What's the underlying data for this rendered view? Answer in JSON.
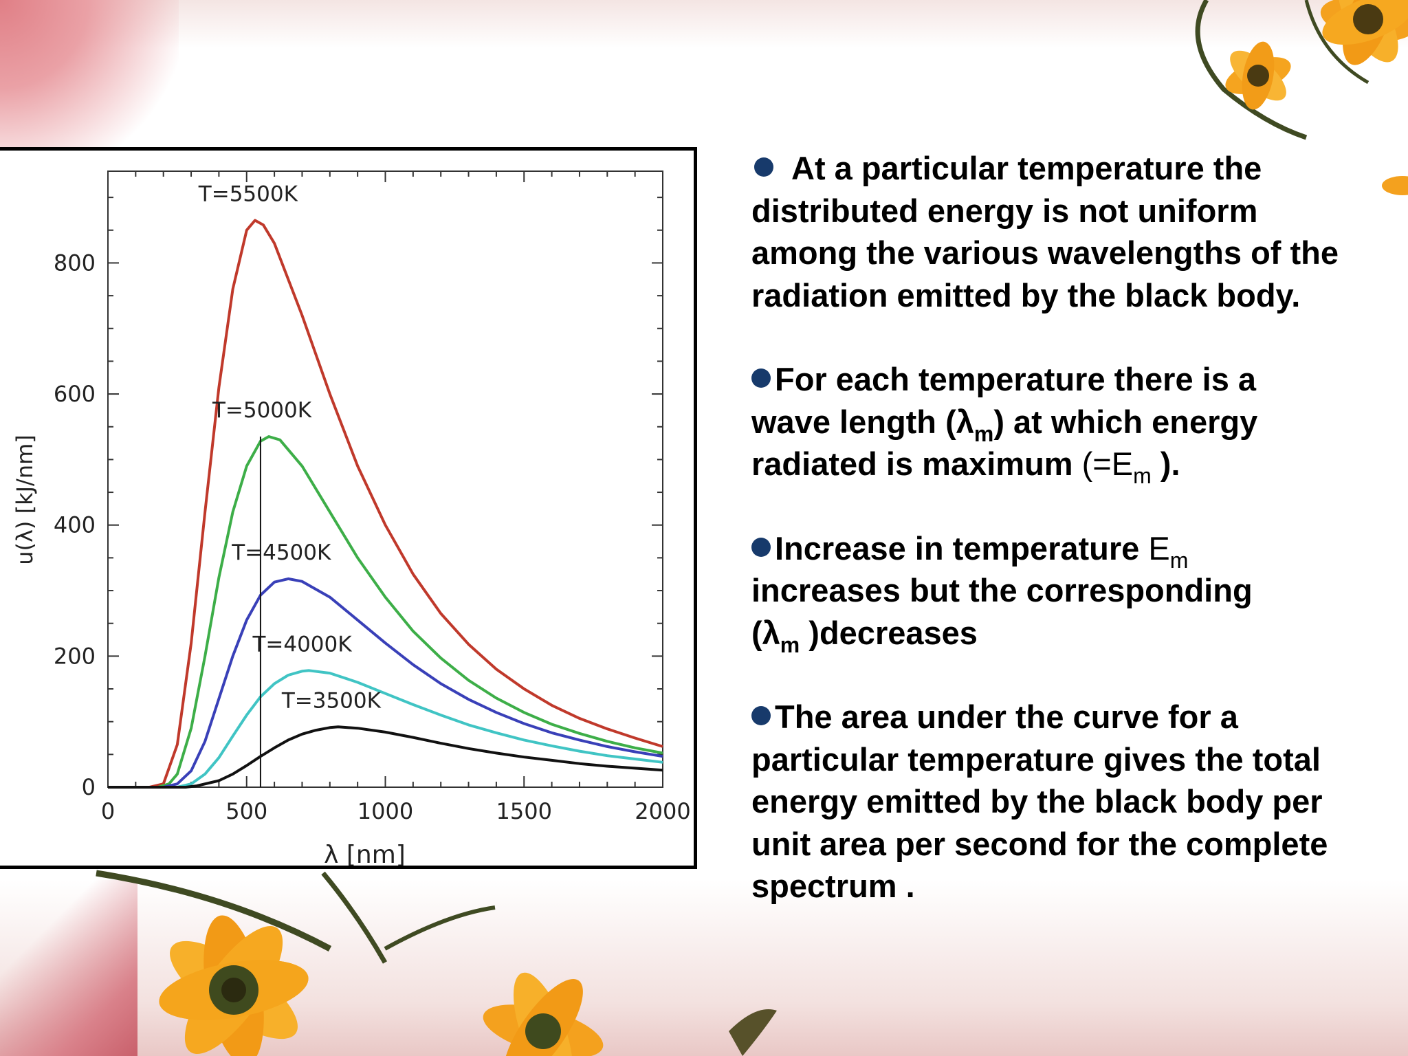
{
  "slide": {
    "paragraphs": [
      {
        "lines": [
          "At a particular temperature  the",
          "distributed energy is not uniform",
          "among the various wavelengths of the",
          "radiation emitted by the black body."
        ]
      },
      {
        "line1": "For each temperature there is a",
        "line2_a": "wave length (λ",
        "line2_sub": "m",
        "line2_b": ")  at which energy",
        "line3_a": "radiated is maximum  ",
        "line3_plain": "(=E",
        "line3_sub": "m",
        "line3_b": " )."
      },
      {
        "line1_a": "Increase in temperature ",
        "line1_plain": "E",
        "line1_sub": "m",
        "line2": "increases but the corresponding",
        "line3_a": "(λ",
        "line3_sub": "m",
        "line3_b": " )decreases"
      },
      {
        "lines": [
          "The area under the curve for a",
          "particular temperature  gives  the total",
          "energy emitted by the black body per",
          "unit area per second  for the complete",
          "spectrum ."
        ]
      }
    ],
    "bullet_color": "#173a6b"
  },
  "chart_data": {
    "type": "line",
    "xlabel": "λ [nm]",
    "ylabel": "u(λ) [kJ/nm]",
    "xlim": [
      0,
      2000
    ],
    "ylim": [
      0,
      940
    ],
    "xticks": [
      0,
      500,
      1000,
      1500,
      2000
    ],
    "yticks": [
      0,
      200,
      400,
      600,
      800
    ],
    "grid": false,
    "marker_line": {
      "x": 550,
      "y_top": 535
    },
    "series": [
      {
        "name": "T=5500K",
        "T": 5500,
        "color": "#c0392b",
        "peak": [
          530,
          865
        ],
        "points": [
          [
            0,
            0
          ],
          [
            150,
            0
          ],
          [
            200,
            5
          ],
          [
            250,
            65
          ],
          [
            300,
            220
          ],
          [
            350,
            420
          ],
          [
            400,
            610
          ],
          [
            450,
            760
          ],
          [
            500,
            850
          ],
          [
            530,
            865
          ],
          [
            560,
            858
          ],
          [
            600,
            830
          ],
          [
            700,
            720
          ],
          [
            800,
            600
          ],
          [
            900,
            490
          ],
          [
            1000,
            400
          ],
          [
            1100,
            325
          ],
          [
            1200,
            265
          ],
          [
            1300,
            218
          ],
          [
            1400,
            180
          ],
          [
            1500,
            150
          ],
          [
            1600,
            125
          ],
          [
            1700,
            105
          ],
          [
            1800,
            89
          ],
          [
            1900,
            75
          ],
          [
            2000,
            62
          ]
        ]
      },
      {
        "name": "T=5000K",
        "T": 5000,
        "color": "#3dae48",
        "peak": [
          580,
          535
        ],
        "points": [
          [
            0,
            0
          ],
          [
            180,
            0
          ],
          [
            220,
            5
          ],
          [
            250,
            20
          ],
          [
            300,
            90
          ],
          [
            350,
            200
          ],
          [
            400,
            320
          ],
          [
            450,
            420
          ],
          [
            500,
            490
          ],
          [
            550,
            528
          ],
          [
            580,
            535
          ],
          [
            620,
            530
          ],
          [
            700,
            490
          ],
          [
            800,
            420
          ],
          [
            900,
            350
          ],
          [
            1000,
            290
          ],
          [
            1100,
            238
          ],
          [
            1200,
            197
          ],
          [
            1300,
            163
          ],
          [
            1400,
            136
          ],
          [
            1500,
            114
          ],
          [
            1600,
            96
          ],
          [
            1700,
            82
          ],
          [
            1800,
            70
          ],
          [
            1900,
            60
          ],
          [
            2000,
            52
          ]
        ]
      },
      {
        "name": "T=4500K",
        "T": 4500,
        "color": "#3940b8",
        "peak": [
          650,
          318
        ],
        "points": [
          [
            0,
            0
          ],
          [
            200,
            0
          ],
          [
            250,
            5
          ],
          [
            300,
            25
          ],
          [
            350,
            70
          ],
          [
            400,
            135
          ],
          [
            450,
            200
          ],
          [
            500,
            255
          ],
          [
            550,
            293
          ],
          [
            600,
            313
          ],
          [
            650,
            318
          ],
          [
            700,
            314
          ],
          [
            800,
            290
          ],
          [
            900,
            255
          ],
          [
            1000,
            220
          ],
          [
            1100,
            187
          ],
          [
            1200,
            158
          ],
          [
            1300,
            134
          ],
          [
            1400,
            114
          ],
          [
            1500,
            97
          ],
          [
            1600,
            83
          ],
          [
            1700,
            72
          ],
          [
            1800,
            62
          ],
          [
            1900,
            54
          ],
          [
            2000,
            47
          ]
        ]
      },
      {
        "name": "T=4000K",
        "T": 4000,
        "color": "#40c4c4",
        "peak": [
          725,
          178
        ],
        "points": [
          [
            0,
            0
          ],
          [
            250,
            0
          ],
          [
            300,
            5
          ],
          [
            350,
            20
          ],
          [
            400,
            45
          ],
          [
            450,
            78
          ],
          [
            500,
            110
          ],
          [
            550,
            138
          ],
          [
            600,
            158
          ],
          [
            650,
            171
          ],
          [
            700,
            177
          ],
          [
            725,
            178
          ],
          [
            800,
            174
          ],
          [
            900,
            160
          ],
          [
            1000,
            143
          ],
          [
            1100,
            126
          ],
          [
            1200,
            110
          ],
          [
            1300,
            95
          ],
          [
            1400,
            83
          ],
          [
            1500,
            72
          ],
          [
            1600,
            63
          ],
          [
            1700,
            55
          ],
          [
            1800,
            48
          ],
          [
            1900,
            43
          ],
          [
            2000,
            38
          ]
        ]
      },
      {
        "name": "T=3500K",
        "T": 3500,
        "color": "#111111",
        "peak": [
          830,
          92
        ],
        "points": [
          [
            0,
            0
          ],
          [
            280,
            0
          ],
          [
            320,
            2
          ],
          [
            400,
            10
          ],
          [
            450,
            20
          ],
          [
            500,
            33
          ],
          [
            550,
            47
          ],
          [
            600,
            60
          ],
          [
            650,
            72
          ],
          [
            700,
            81
          ],
          [
            750,
            87
          ],
          [
            800,
            91
          ],
          [
            830,
            92
          ],
          [
            900,
            90
          ],
          [
            1000,
            84
          ],
          [
            1100,
            76
          ],
          [
            1200,
            67
          ],
          [
            1300,
            59
          ],
          [
            1400,
            52
          ],
          [
            1500,
            46
          ],
          [
            1600,
            41
          ],
          [
            1700,
            36
          ],
          [
            1800,
            32
          ],
          [
            1900,
            29
          ],
          [
            2000,
            26
          ]
        ]
      }
    ]
  }
}
